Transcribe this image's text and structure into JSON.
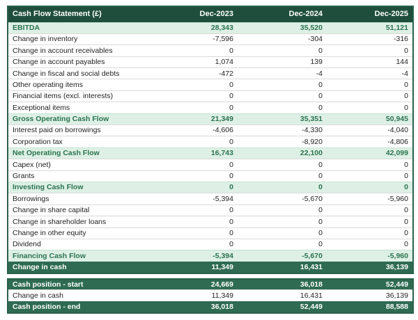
{
  "colors": {
    "header_bg": "#1f4e3d",
    "total_bg": "#2e6b52",
    "light_green_bg": "#def0e5",
    "highlight_text": "#2b7350"
  },
  "chart_data": {
    "type": "table",
    "title": "Cash Flow Statement (£)",
    "columns": [
      "Dec-2023",
      "Dec-2024",
      "Dec-2025"
    ],
    "sections": {
      "main": [
        {
          "label": "EBITDA",
          "values": [
            "28,343",
            "35,520",
            "51,121"
          ],
          "style": "highlight"
        },
        {
          "label": "Change in inventory",
          "values": [
            "-7,596",
            "-304",
            "-316"
          ],
          "style": "normal"
        },
        {
          "label": "Change in account receivables",
          "values": [
            "0",
            "0",
            "0"
          ],
          "style": "normal"
        },
        {
          "label": "Change in account payables",
          "values": [
            "1,074",
            "139",
            "144"
          ],
          "style": "normal"
        },
        {
          "label": "Change in fiscal and social debts",
          "values": [
            "-472",
            "-4",
            "-4"
          ],
          "style": "normal"
        },
        {
          "label": "Other operating items",
          "values": [
            "0",
            "0",
            "0"
          ],
          "style": "normal"
        },
        {
          "label": "Financial items (excl. interests)",
          "values": [
            "0",
            "0",
            "0"
          ],
          "style": "normal"
        },
        {
          "label": "Exceptional items",
          "values": [
            "0",
            "0",
            "0"
          ],
          "style": "normal"
        },
        {
          "label": "Gross Operating Cash Flow",
          "values": [
            "21,349",
            "35,351",
            "50,945"
          ],
          "style": "highlight"
        },
        {
          "label": "Interest paid on borrowings",
          "values": [
            "-4,606",
            "-4,330",
            "-4,040"
          ],
          "style": "normal"
        },
        {
          "label": "Corporation tax",
          "values": [
            "0",
            "-8,920",
            "-4,806"
          ],
          "style": "normal"
        },
        {
          "label": "Net Operating Cash Flow",
          "values": [
            "16,743",
            "22,100",
            "42,099"
          ],
          "style": "highlight"
        },
        {
          "label": "Capex (net)",
          "values": [
            "0",
            "0",
            "0"
          ],
          "style": "normal"
        },
        {
          "label": "Grants",
          "values": [
            "0",
            "0",
            "0"
          ],
          "style": "normal"
        },
        {
          "label": "Investing Cash Flow",
          "values": [
            "0",
            "0",
            "0"
          ],
          "style": "highlight"
        },
        {
          "label": "Borrowings",
          "values": [
            "-5,394",
            "-5,670",
            "-5,960"
          ],
          "style": "normal"
        },
        {
          "label": "Change in share capital",
          "values": [
            "0",
            "0",
            "0"
          ],
          "style": "normal"
        },
        {
          "label": "Change in shareholder loans",
          "values": [
            "0",
            "0",
            "0"
          ],
          "style": "normal"
        },
        {
          "label": "Change in other equity",
          "values": [
            "0",
            "0",
            "0"
          ],
          "style": "normal"
        },
        {
          "label": "Dividend",
          "values": [
            "0",
            "0",
            "0"
          ],
          "style": "normal"
        },
        {
          "label": "Financing Cash Flow",
          "values": [
            "-5,394",
            "-5,670",
            "-5,960"
          ],
          "style": "highlight"
        },
        {
          "label": "Change in cash",
          "values": [
            "11,349",
            "16,431",
            "36,139"
          ],
          "style": "total"
        }
      ],
      "cash_position": [
        {
          "label": "Cash position - start",
          "values": [
            "24,669",
            "36,018",
            "52,449"
          ],
          "style": "total"
        },
        {
          "label": "Change in cash",
          "values": [
            "11,349",
            "16,431",
            "36,139"
          ],
          "style": "normal"
        },
        {
          "label": "Cash position - end",
          "values": [
            "36,018",
            "52,449",
            "88,588"
          ],
          "style": "total"
        }
      ]
    }
  }
}
